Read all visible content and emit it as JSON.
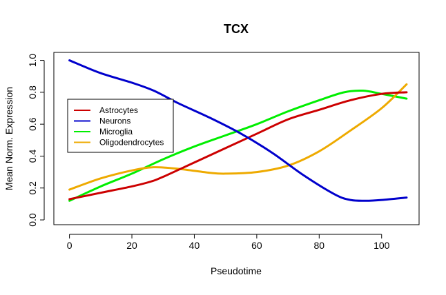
{
  "chart_data": {
    "type": "line",
    "title": "TCX",
    "xlabel": "Pseudotime",
    "ylabel": "Mean Norm. Expression",
    "xlim": [
      -5,
      112
    ],
    "ylim": [
      -0.03,
      1.05
    ],
    "xticks": [
      0,
      20,
      40,
      60,
      80,
      100
    ],
    "yticks": [
      0.0,
      0.2,
      0.4,
      0.6,
      0.8,
      1.0
    ],
    "xtick_labels": [
      "0",
      "20",
      "40",
      "60",
      "80",
      "100"
    ],
    "ytick_labels": [
      "0.0",
      "0.2",
      "0.4",
      "0.6",
      "0.8",
      "1.0"
    ],
    "grid": false,
    "legend_position": "upper-left",
    "series": [
      {
        "name": "Astrocytes",
        "color": "#cc0000",
        "x": [
          0,
          10,
          20,
          26,
          30,
          40,
          50,
          60,
          70,
          80,
          90,
          100,
          108
        ],
        "y": [
          0.13,
          0.17,
          0.21,
          0.24,
          0.27,
          0.36,
          0.45,
          0.54,
          0.63,
          0.69,
          0.75,
          0.79,
          0.8
        ]
      },
      {
        "name": "Neurons",
        "color": "#0000cc",
        "x": [
          0,
          10,
          20,
          27,
          35,
          45,
          55,
          65,
          75,
          85,
          90,
          95,
          100,
          108
        ],
        "y": [
          1.0,
          0.92,
          0.86,
          0.81,
          0.73,
          0.64,
          0.54,
          0.42,
          0.28,
          0.16,
          0.125,
          0.12,
          0.125,
          0.14
        ]
      },
      {
        "name": "Microglia",
        "color": "#00ee00",
        "x": [
          0,
          10,
          20,
          30,
          40,
          50,
          60,
          70,
          80,
          88,
          94,
          100,
          108
        ],
        "y": [
          0.12,
          0.21,
          0.29,
          0.38,
          0.46,
          0.53,
          0.6,
          0.68,
          0.75,
          0.8,
          0.81,
          0.79,
          0.76
        ]
      },
      {
        "name": "Oligodendrocytes",
        "color": "#eeaa00",
        "x": [
          0,
          10,
          20,
          27,
          35,
          45,
          50,
          60,
          70,
          80,
          90,
          100,
          108
        ],
        "y": [
          0.19,
          0.26,
          0.31,
          0.33,
          0.32,
          0.295,
          0.29,
          0.3,
          0.34,
          0.43,
          0.56,
          0.7,
          0.85
        ]
      }
    ]
  }
}
